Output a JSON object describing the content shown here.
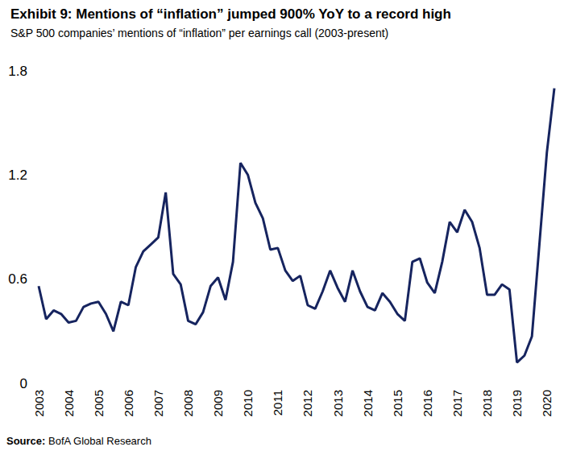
{
  "chart_data": {
    "type": "line",
    "title": "Exhibit 9: Mentions of “inflation” jumped 900% YoY to a record high",
    "subtitle": "S&P 500 companies’ mentions of “inflation” per earnings call (2003-present)",
    "source": "Source: BofA Global Research",
    "categories": [
      "2003",
      null,
      null,
      null,
      "2004",
      null,
      null,
      null,
      "2005",
      null,
      null,
      null,
      "2006",
      null,
      null,
      null,
      "2007",
      null,
      null,
      null,
      "2008",
      null,
      null,
      null,
      "2009",
      null,
      null,
      null,
      "2010",
      null,
      null,
      null,
      "2011",
      null,
      null,
      null,
      "2012",
      null,
      null,
      null,
      "2013",
      null,
      null,
      null,
      "2014",
      null,
      null,
      null,
      "2015",
      null,
      null,
      null,
      "2016",
      null,
      null,
      null,
      "2017",
      null,
      null,
      null,
      "2018",
      null,
      null,
      null,
      "2019",
      null,
      null,
      null,
      "2020",
      null
    ],
    "values": [
      0.56,
      0.37,
      0.42,
      0.4,
      0.35,
      0.36,
      0.44,
      0.46,
      0.47,
      0.4,
      0.3,
      0.47,
      0.45,
      0.67,
      0.76,
      0.8,
      0.84,
      1.1,
      0.63,
      0.57,
      0.36,
      0.34,
      0.41,
      0.56,
      0.61,
      0.48,
      0.7,
      1.27,
      1.2,
      1.04,
      0.95,
      0.77,
      0.78,
      0.65,
      0.59,
      0.62,
      0.45,
      0.43,
      0.53,
      0.65,
      0.55,
      0.47,
      0.65,
      0.53,
      0.44,
      0.42,
      0.52,
      0.47,
      0.4,
      0.36,
      0.7,
      0.72,
      0.58,
      0.52,
      0.7,
      0.93,
      0.87,
      1.0,
      0.93,
      0.78,
      0.51,
      0.51,
      0.57,
      0.54,
      0.12,
      0.16,
      0.27,
      0.8,
      1.33,
      1.7
    ],
    "color": "#16245f",
    "ylim": [
      0,
      1.8
    ],
    "yticks": [
      0,
      0.6,
      1.2,
      1.8
    ],
    "grid": false
  }
}
